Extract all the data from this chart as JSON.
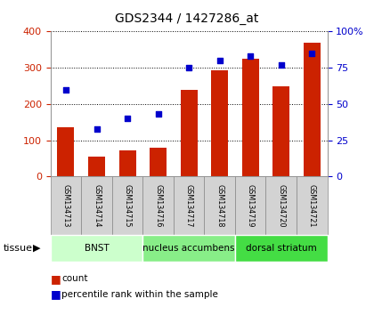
{
  "title": "GDS2344 / 1427286_at",
  "samples": [
    "GSM134713",
    "GSM134714",
    "GSM134715",
    "GSM134716",
    "GSM134717",
    "GSM134718",
    "GSM134719",
    "GSM134720",
    "GSM134721"
  ],
  "counts": [
    135,
    55,
    72,
    78,
    238,
    292,
    325,
    248,
    368
  ],
  "percentile_ranks": [
    60,
    33,
    40,
    43,
    75,
    80,
    83,
    77,
    85
  ],
  "bar_color": "#cc2200",
  "dot_color": "#0000cc",
  "ylim_left": [
    0,
    400
  ],
  "ylim_right": [
    0,
    100
  ],
  "yticks_left": [
    0,
    100,
    200,
    300,
    400
  ],
  "yticks_right": [
    0,
    25,
    50,
    75,
    100
  ],
  "ytick_labels_right": [
    "0",
    "25",
    "50",
    "75",
    "100%"
  ],
  "tissue_groups": [
    {
      "label": "BNST",
      "start": 0,
      "end": 3,
      "color": "#ccffcc"
    },
    {
      "label": "nucleus accumbens",
      "start": 3,
      "end": 6,
      "color": "#88ee88"
    },
    {
      "label": "dorsal striatum",
      "start": 6,
      "end": 9,
      "color": "#44dd44"
    }
  ],
  "tissue_label": "tissue",
  "legend_count_label": "count",
  "legend_pct_label": "percentile rank within the sample",
  "tick_label_color_left": "#cc2200",
  "tick_label_color_right": "#0000cc",
  "sample_box_color": "#d3d3d3",
  "sample_box_edge": "#888888"
}
